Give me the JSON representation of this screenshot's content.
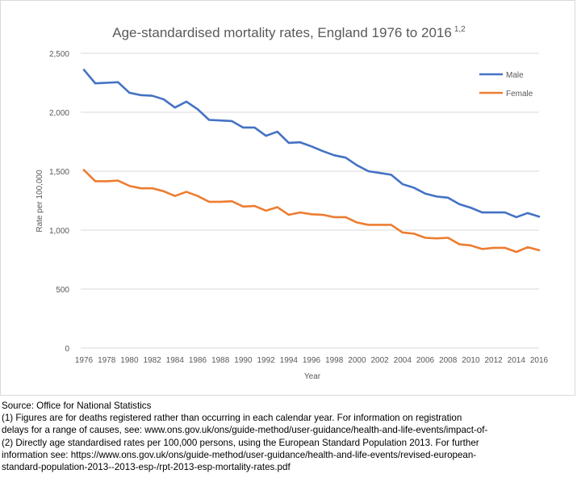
{
  "chart_data": {
    "type": "line",
    "title": "Age-standardised mortality rates, England 1976 to 2016",
    "title_superscript": "1,2",
    "xlabel": "Year",
    "ylabel": "Rate per 100,000",
    "ylim": [
      0,
      2500
    ],
    "yticks": [
      "0",
      "500",
      "1,000",
      "1,500",
      "2,000",
      "2,500"
    ],
    "xticks": [
      "1976",
      "1978",
      "1980",
      "1982",
      "1984",
      "1986",
      "1988",
      "1990",
      "1992",
      "1994",
      "1996",
      "1998",
      "2000",
      "2002",
      "2004",
      "2006",
      "2008",
      "2010",
      "2012",
      "2014",
      "2016"
    ],
    "grid": "horizontal",
    "legend_position": "top-right",
    "x": [
      1976,
      1977,
      1978,
      1979,
      1980,
      1981,
      1982,
      1983,
      1984,
      1985,
      1986,
      1987,
      1988,
      1989,
      1990,
      1991,
      1992,
      1993,
      1994,
      1995,
      1996,
      1997,
      1998,
      1999,
      2000,
      2001,
      2002,
      2003,
      2004,
      2005,
      2006,
      2007,
      2008,
      2009,
      2010,
      2011,
      2012,
      2013,
      2014,
      2015,
      2016
    ],
    "series": [
      {
        "name": "Male",
        "color": "#4472c4",
        "values": [
          2360,
          2245,
          2250,
          2255,
          2165,
          2145,
          2140,
          2110,
          2040,
          2090,
          2025,
          1935,
          1930,
          1925,
          1870,
          1870,
          1800,
          1835,
          1740,
          1745,
          1710,
          1670,
          1635,
          1615,
          1550,
          1500,
          1485,
          1470,
          1390,
          1360,
          1310,
          1285,
          1275,
          1220,
          1190,
          1150,
          1150,
          1150,
          1110,
          1145,
          1115
        ]
      },
      {
        "name": "Female",
        "color": "#ed7d31",
        "values": [
          1510,
          1415,
          1415,
          1420,
          1375,
          1355,
          1355,
          1330,
          1290,
          1325,
          1290,
          1240,
          1240,
          1245,
          1200,
          1205,
          1165,
          1195,
          1130,
          1150,
          1135,
          1130,
          1110,
          1110,
          1065,
          1045,
          1045,
          1045,
          980,
          970,
          935,
          930,
          935,
          880,
          870,
          840,
          850,
          850,
          815,
          855,
          830
        ]
      }
    ]
  },
  "notes": {
    "source": "Source: Office for National Statistics",
    "note1_line1": "(1) Figures are for deaths registered rather than occurring in each calendar year. For information on registration",
    "note1_line2": "delays for a range of causes, see: www.ons.gov.uk/ons/guide-method/user-guidance/health-and-life-events/impact-of-",
    "note2_line1": "(2) Directly age standardised rates per 100,000 persons, using the European Standard Population 2013. For further",
    "note2_line2": "information see: https://www.ons.gov.uk/ons/guide-method/user-guidance/health-and-life-events/revised-european-",
    "note2_line3": "standard-population-2013--2013-esp-/rpt-2013-esp-mortality-rates.pdf"
  }
}
